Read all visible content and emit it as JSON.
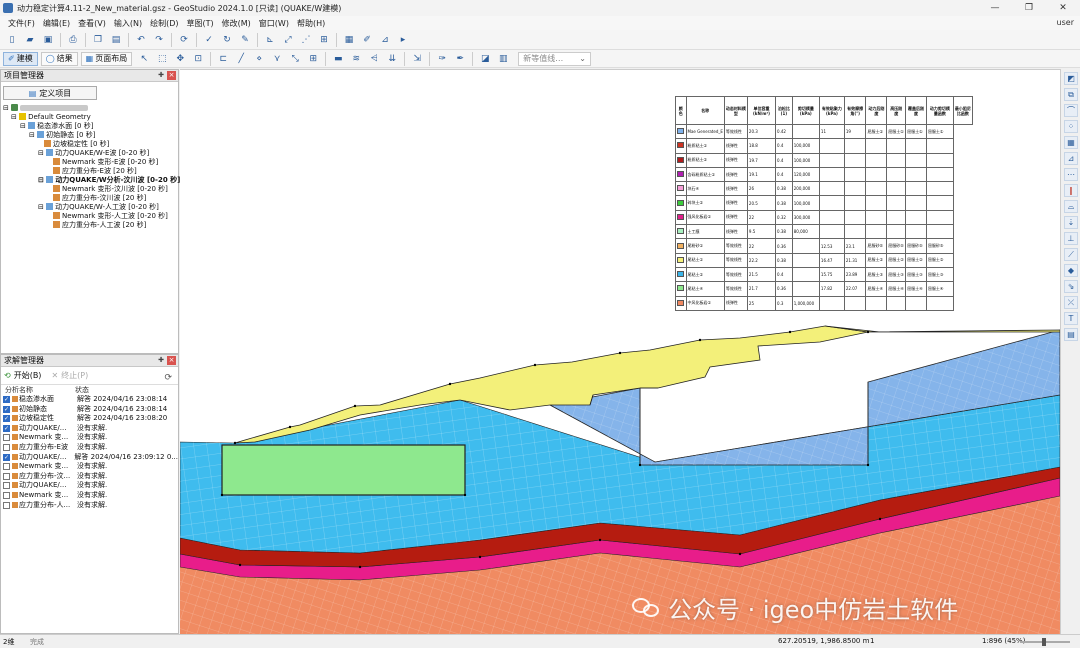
{
  "window": {
    "title": "动力稳定计算4.11-2_New_material.gsz - GeoStudio 2024.1.0 [只读] (QUAKE/W建模)",
    "controls": [
      "—",
      "❐",
      "✕"
    ]
  },
  "menubar": {
    "items": [
      "文件(F)",
      "编辑(E)",
      "查看(V)",
      "输入(N)",
      "绘制(D)",
      "草图(T)",
      "修改(M)",
      "窗口(W)",
      "帮助(H)"
    ],
    "user": "user"
  },
  "toolbar2": {
    "modes": [
      {
        "label": "建模",
        "icon": "✐",
        "active": true
      },
      {
        "label": "结果",
        "icon": "◯",
        "active": false
      },
      {
        "label": "页面布局",
        "icon": "▦",
        "active": false
      }
    ],
    "dropdown_placeholder": "新等值线…"
  },
  "project_panel": {
    "title": "项目管理器",
    "define_button": "定义项目",
    "tree": [
      {
        "level": 1,
        "label": "Default Geometry",
        "icon": "folder"
      },
      {
        "level": 2,
        "label": "稳态渗水面 [0 秒]",
        "icon": "analysis"
      },
      {
        "level": 3,
        "label": "初始静态 [0 秒]",
        "icon": "analysis"
      },
      {
        "level": 4,
        "label": "边坡稳定性 [0 秒]",
        "icon": "chart"
      },
      {
        "level": 3,
        "label": "动力QUAKE/W-E波 [0-20 秒]",
        "icon": "analysis"
      },
      {
        "level": 4,
        "label": "Newmark 变形-E波 [0-20 秒]",
        "icon": "chart"
      },
      {
        "level": 4,
        "label": "应力重分布-E波 [20 秒]",
        "icon": "chart"
      },
      {
        "level": 3,
        "label": "动力QUAKE/W分析-汶川波 [0-20 秒]",
        "icon": "analysis",
        "bold": true
      },
      {
        "level": 4,
        "label": "Newmark 变形-汶川波 [0-20 秒]",
        "icon": "chart"
      },
      {
        "level": 4,
        "label": "应力重分布-汶川波 [20 秒]",
        "icon": "chart"
      },
      {
        "level": 3,
        "label": "动力QUAKE/W-人工波 [0-20 秒]",
        "icon": "analysis"
      },
      {
        "level": 4,
        "label": "Newmark 变形-人工波 [0-20 秒]",
        "icon": "chart"
      },
      {
        "level": 4,
        "label": "应力重分布-人工波 [20 秒]",
        "icon": "chart"
      }
    ]
  },
  "solve_panel": {
    "title": "求解管理器",
    "start_label": "开始(B)",
    "stop_label": "终止(P)",
    "columns": [
      "分析名称",
      "状态"
    ],
    "rows": [
      {
        "checked": true,
        "name": "稳态渗水面",
        "status": "解答 2024/04/16 23:08:14"
      },
      {
        "checked": true,
        "name": "初始静态",
        "status": "解答 2024/04/16 23:08:14"
      },
      {
        "checked": true,
        "name": "边坡稳定性",
        "status": "解答 2024/04/16 23:08:20"
      },
      {
        "checked": true,
        "name": "动力QUAKE/...",
        "status": "没有求解."
      },
      {
        "checked": false,
        "name": "Newmark 变...",
        "status": "没有求解."
      },
      {
        "checked": false,
        "name": "应力重分布-E波",
        "status": "没有求解."
      },
      {
        "checked": true,
        "name": "动力QUAKE/...",
        "status": "解答 2024/04/16 23:09:12  0..."
      },
      {
        "checked": false,
        "name": "Newmark 变...",
        "status": "没有求解."
      },
      {
        "checked": false,
        "name": "应力重分布-汶...",
        "status": "没有求解."
      },
      {
        "checked": false,
        "name": "动力QUAKE/...",
        "status": "没有求解."
      },
      {
        "checked": false,
        "name": "Newmark 变...",
        "status": "没有求解."
      },
      {
        "checked": false,
        "name": "应力重分布-人...",
        "status": "没有求解."
      }
    ]
  },
  "materials": {
    "headers": [
      "颜色",
      "名称",
      "动态材料模型",
      "单位容重(kN/m³)",
      "泊松比(1)",
      "剪切模量(kPa)",
      "有效粘聚力(kPa)",
      "有效摩擦角(°)",
      "动力后刚度",
      "高压刚度",
      "覆盖后刚度",
      "动力剪切模量函数",
      "最小阻尼比函数"
    ],
    "rows": [
      {
        "color": "#7fb2ec",
        "name": "Mae Generated_E",
        "model": "等效线性",
        "unit_weight": "20.3",
        "poisson": "0.42",
        "shear_mod": "",
        "c": "11",
        "phi": "19",
        "f1": "屈服土①",
        "f2": "屈服土①",
        "f3": "屈服土①",
        "f4": "屈服土①"
      },
      {
        "color": "#cc3322",
        "name": "粉质粘土①",
        "model": "线弹性",
        "unit_weight": "18.8",
        "poisson": "0.4",
        "shear_mod": "100,000",
        "c": "",
        "phi": "",
        "f1": "",
        "f2": "",
        "f3": "",
        "f4": ""
      },
      {
        "color": "#b01c1c",
        "name": "粉质粘土②",
        "model": "线弹性",
        "unit_weight": "19.7",
        "poisson": "0.4",
        "shear_mod": "100,000",
        "c": "",
        "phi": "",
        "f1": "",
        "f2": "",
        "f3": "",
        "f4": ""
      },
      {
        "color": "#b020b0",
        "name": "含砾粉质粘土①",
        "model": "线弹性",
        "unit_weight": "19.1",
        "poisson": "0.4",
        "shear_mod": "120,000",
        "c": "",
        "phi": "",
        "f1": "",
        "f2": "",
        "f3": "",
        "f4": ""
      },
      {
        "color": "#f5a0d8",
        "name": "块石④",
        "model": "线弹性",
        "unit_weight": "26",
        "poisson": "0.38",
        "shear_mod": "200,000",
        "c": "",
        "phi": "",
        "f1": "",
        "f2": "",
        "f3": "",
        "f4": ""
      },
      {
        "color": "#3ccc3c",
        "name": "碎块土②",
        "model": "线弹性",
        "unit_weight": "20.5",
        "poisson": "0.38",
        "shear_mod": "100,000",
        "c": "",
        "phi": "",
        "f1": "",
        "f2": "",
        "f3": "",
        "f4": ""
      },
      {
        "color": "#e0208a",
        "name": "强风化板岩①",
        "model": "线弹性",
        "unit_weight": "22",
        "poisson": "0.32",
        "shear_mod": "300,000",
        "c": "",
        "phi": "",
        "f1": "",
        "f2": "",
        "f3": "",
        "f4": ""
      },
      {
        "color": "#a8f0c0",
        "name": "土工膜",
        "model": "线弹性",
        "unit_weight": "9.5",
        "poisson": "0.38",
        "shear_mod": "80,000",
        "c": "",
        "phi": "",
        "f1": "",
        "f2": "",
        "f3": "",
        "f4": ""
      },
      {
        "color": "#f0b060",
        "name": "尾粉砂①",
        "model": "等效线性",
        "unit_weight": "22",
        "poisson": "0.36",
        "shear_mod": "",
        "c": "12.53",
        "phi": "23.1",
        "f1": "屈服砂⑤",
        "f2": "屈服砂⑤",
        "f3": "屈服砂⑤",
        "f4": "屈服砂⑤"
      },
      {
        "color": "#f5f07a",
        "name": "尾粘土①",
        "model": "等效线性",
        "unit_weight": "22.2",
        "poisson": "0.38",
        "shear_mod": "",
        "c": "16.47",
        "phi": "21.31",
        "f1": "屈服土②",
        "f2": "屈服土②",
        "f3": "屈服土②",
        "f4": "屈服土②"
      },
      {
        "color": "#3ab4e8",
        "name": "尾粘土②",
        "model": "等效线性",
        "unit_weight": "21.5",
        "poisson": "0.4",
        "shear_mod": "",
        "c": "15.75",
        "phi": "23.89",
        "f1": "屈服土③",
        "f2": "屈服土③",
        "f3": "屈服土③",
        "f4": "屈服土③"
      },
      {
        "color": "#8ee88e",
        "name": "尾粘土④",
        "model": "等效线性",
        "unit_weight": "21.7",
        "poisson": "0.36",
        "shear_mod": "",
        "c": "17.82",
        "phi": "22.07",
        "f1": "屈服土④",
        "f2": "屈服土④",
        "f3": "屈服土④",
        "f4": "屈服土④"
      },
      {
        "color": "#f08860",
        "name": "中风化板岩①",
        "model": "线弹性",
        "unit_weight": "25",
        "poisson": "0.3",
        "shear_mod": "1,000,000",
        "c": "",
        "phi": "",
        "f1": "",
        "f2": "",
        "f3": "",
        "f4": ""
      }
    ]
  },
  "colors": {
    "tailings_blue": "#3fbcee",
    "upper_blue": "#85b4ea",
    "dam_yellow": "#f3f07a",
    "green_block": "#8ee88e",
    "red_layer": "#b51c10",
    "magenta_layer": "#e81d8a",
    "bedrock": "#f08b62"
  },
  "statusbar": {
    "left": "2维",
    "state": "完成",
    "coords": "627.20519, 1,986.8500 m",
    "view_num": "1",
    "zoom": "1:896 (45%)"
  },
  "watermark": "公众号 · igeo中仿岩土软件"
}
